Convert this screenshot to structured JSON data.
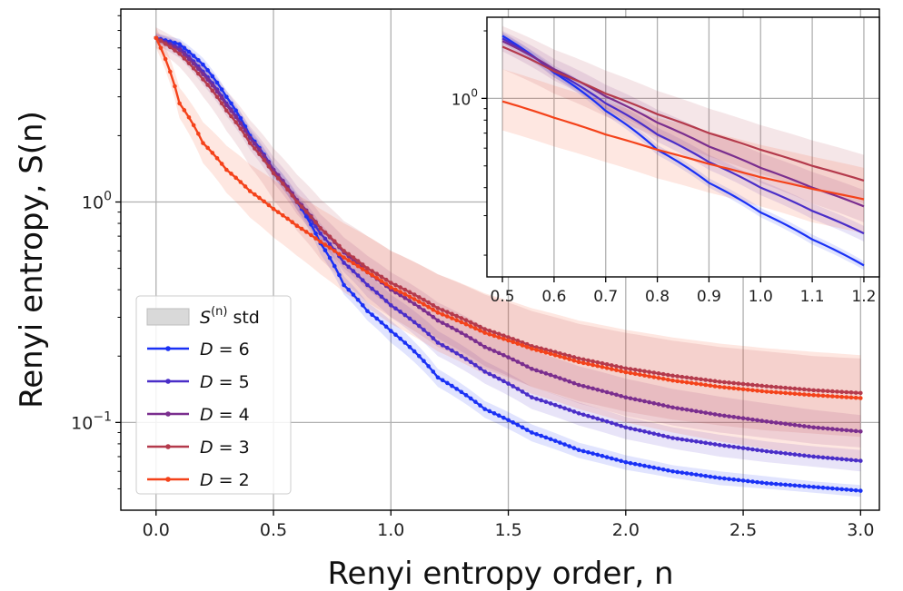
{
  "chart_data": [
    {
      "type": "line",
      "panel": "main",
      "xlabel": "Renyi entropy order, n",
      "ylabel": "Renyi entropy, S(n)",
      "yscale": "log",
      "xlim": [
        -0.15,
        3.08
      ],
      "ylim": [
        0.04,
        7.5
      ],
      "xticks": [
        "0.0",
        "0.5",
        "1.0",
        "1.5",
        "2.0",
        "2.5",
        "3.0"
      ],
      "xtick_values": [
        0,
        0.5,
        1.0,
        1.5,
        2.0,
        2.5,
        3.0
      ],
      "yticks": [
        "10",
        "10"
      ],
      "ytick_exponents": [
        "0",
        "−1"
      ],
      "ytick_values": [
        1,
        0.1
      ],
      "grid": true,
      "legend": {
        "position": "lower-left",
        "std_label": "std",
        "std_symbol": "S",
        "std_superscript": "(n)"
      },
      "series": [
        {
          "name": "D = 6",
          "label_var": "D",
          "label_val": "6",
          "color": "#1a31f5",
          "x": [
            0,
            0.1,
            0.2,
            0.3,
            0.4,
            0.5,
            0.6,
            0.7,
            0.8,
            0.9,
            1.0,
            1.2,
            1.4,
            1.6,
            1.8,
            2.0,
            2.2,
            2.4,
            2.6,
            2.8,
            3.0
          ],
          "values": [
            5.55,
            5.2,
            4.2,
            3.0,
            2.0,
            1.4,
            1.0,
            0.65,
            0.42,
            0.32,
            0.26,
            0.16,
            0.115,
            0.09,
            0.075,
            0.066,
            0.06,
            0.056,
            0.053,
            0.051,
            0.049
          ],
          "std_lower": [
            5.3,
            4.9,
            3.9,
            2.8,
            1.85,
            1.3,
            0.92,
            0.58,
            0.38,
            0.29,
            0.23,
            0.145,
            0.105,
            0.082,
            0.069,
            0.061,
            0.056,
            0.052,
            0.05,
            0.048,
            0.046
          ],
          "std_upper": [
            5.8,
            5.5,
            4.5,
            3.2,
            2.15,
            1.5,
            1.08,
            0.72,
            0.46,
            0.35,
            0.29,
            0.175,
            0.125,
            0.098,
            0.081,
            0.071,
            0.064,
            0.06,
            0.057,
            0.054,
            0.052
          ]
        },
        {
          "name": "D = 5",
          "label_var": "D",
          "label_val": "5",
          "color": "#4a2ec8",
          "x": [
            0,
            0.1,
            0.2,
            0.3,
            0.4,
            0.5,
            0.6,
            0.7,
            0.8,
            0.9,
            1.0,
            1.2,
            1.4,
            1.6,
            1.8,
            2.0,
            2.2,
            2.4,
            2.6,
            2.8,
            3.0
          ],
          "values": [
            5.55,
            5.0,
            3.9,
            2.8,
            1.95,
            1.4,
            1.0,
            0.72,
            0.53,
            0.42,
            0.34,
            0.23,
            0.17,
            0.13,
            0.11,
            0.095,
            0.085,
            0.079,
            0.074,
            0.07,
            0.067
          ],
          "std_lower": [
            5.3,
            4.7,
            3.6,
            2.6,
            1.8,
            1.3,
            0.92,
            0.65,
            0.48,
            0.37,
            0.3,
            0.2,
            0.15,
            0.115,
            0.097,
            0.084,
            0.076,
            0.07,
            0.066,
            0.063,
            0.06
          ],
          "std_upper": [
            5.8,
            5.3,
            4.2,
            3.0,
            2.1,
            1.5,
            1.1,
            0.8,
            0.59,
            0.47,
            0.38,
            0.26,
            0.19,
            0.145,
            0.123,
            0.106,
            0.095,
            0.088,
            0.082,
            0.078,
            0.075
          ]
        },
        {
          "name": "D = 4",
          "label_var": "D",
          "label_val": "4",
          "color": "#7a2e8e",
          "x": [
            0,
            0.1,
            0.2,
            0.3,
            0.4,
            0.5,
            0.6,
            0.7,
            0.8,
            0.9,
            1.0,
            1.2,
            1.4,
            1.6,
            1.8,
            2.0,
            2.2,
            2.4,
            2.6,
            2.8,
            3.0
          ],
          "values": [
            5.55,
            4.9,
            3.8,
            2.75,
            1.95,
            1.4,
            1.02,
            0.76,
            0.59,
            0.48,
            0.4,
            0.29,
            0.22,
            0.175,
            0.148,
            0.13,
            0.117,
            0.108,
            0.101,
            0.095,
            0.091
          ],
          "std_lower": [
            5.2,
            4.5,
            3.4,
            2.45,
            1.72,
            1.22,
            0.88,
            0.65,
            0.5,
            0.4,
            0.33,
            0.24,
            0.18,
            0.145,
            0.122,
            0.107,
            0.097,
            0.09,
            0.085,
            0.08,
            0.077
          ],
          "std_upper": [
            5.9,
            5.3,
            4.2,
            3.05,
            2.2,
            1.6,
            1.18,
            0.88,
            0.69,
            0.57,
            0.48,
            0.35,
            0.27,
            0.212,
            0.18,
            0.158,
            0.142,
            0.131,
            0.122,
            0.114,
            0.108
          ]
        },
        {
          "name": "D = 3",
          "label_var": "D",
          "label_val": "3",
          "color": "#b43a4c",
          "x": [
            0,
            0.1,
            0.2,
            0.3,
            0.4,
            0.5,
            0.6,
            0.7,
            0.8,
            0.9,
            1.0,
            1.2,
            1.4,
            1.6,
            1.8,
            2.0,
            2.2,
            2.4,
            2.6,
            2.8,
            3.0
          ],
          "values": [
            5.55,
            4.7,
            3.6,
            2.6,
            1.85,
            1.35,
            1.0,
            0.76,
            0.6,
            0.5,
            0.43,
            0.33,
            0.265,
            0.222,
            0.195,
            0.176,
            0.163,
            0.153,
            0.146,
            0.14,
            0.136
          ],
          "std_lower": [
            5.0,
            4.1,
            3.0,
            2.1,
            1.45,
            1.02,
            0.74,
            0.55,
            0.43,
            0.35,
            0.3,
            0.22,
            0.175,
            0.145,
            0.125,
            0.112,
            0.103,
            0.097,
            0.092,
            0.089,
            0.086
          ],
          "std_upper": [
            6.2,
            5.4,
            4.3,
            3.2,
            2.35,
            1.75,
            1.33,
            1.03,
            0.82,
            0.7,
            0.6,
            0.47,
            0.38,
            0.32,
            0.28,
            0.255,
            0.235,
            0.22,
            0.21,
            0.2,
            0.195
          ]
        },
        {
          "name": "D = 2",
          "label_var": "D",
          "label_val": "2",
          "color": "#f4421a",
          "x": [
            0,
            0.1,
            0.2,
            0.3,
            0.4,
            0.5,
            0.6,
            0.7,
            0.8,
            0.9,
            1.0,
            1.2,
            1.4,
            1.6,
            1.8,
            2.0,
            2.2,
            2.4,
            2.6,
            2.8,
            3.0
          ],
          "values": [
            5.55,
            2.8,
            1.85,
            1.4,
            1.12,
            0.93,
            0.78,
            0.66,
            0.56,
            0.48,
            0.41,
            0.315,
            0.255,
            0.216,
            0.188,
            0.169,
            0.155,
            0.145,
            0.138,
            0.133,
            0.129
          ],
          "std_lower": [
            5.0,
            2.4,
            1.5,
            1.1,
            0.85,
            0.69,
            0.57,
            0.47,
            0.39,
            0.33,
            0.28,
            0.21,
            0.165,
            0.135,
            0.115,
            0.1,
            0.09,
            0.082,
            0.076,
            0.071,
            0.067
          ],
          "std_upper": [
            6.2,
            3.3,
            2.3,
            1.8,
            1.48,
            1.26,
            1.08,
            0.93,
            0.8,
            0.7,
            0.6,
            0.47,
            0.385,
            0.33,
            0.29,
            0.263,
            0.243,
            0.228,
            0.217,
            0.209,
            0.202
          ]
        }
      ]
    },
    {
      "type": "line",
      "panel": "inset",
      "yscale": "log",
      "xlim": [
        0.47,
        1.23
      ],
      "ylim": [
        0.16,
        2.3
      ],
      "xticks": [
        "0.5",
        "0.6",
        "0.7",
        "0.8",
        "0.9",
        "1.0",
        "1.1",
        "1.2"
      ],
      "xtick_values": [
        0.5,
        0.6,
        0.7,
        0.8,
        0.9,
        1.0,
        1.1,
        1.2
      ],
      "yticks": [
        "10"
      ],
      "ytick_exponents": [
        "0"
      ],
      "ytick_values": [
        1
      ],
      "grid": true,
      "series": [
        {
          "name": "D = 6",
          "color": "#1a31f5",
          "x": [
            0.5,
            0.6,
            0.7,
            0.8,
            0.9,
            1.0,
            1.1,
            1.2
          ],
          "values": [
            1.9,
            1.3,
            0.88,
            0.59,
            0.42,
            0.31,
            0.235,
            0.18
          ],
          "std_lower": [
            1.82,
            1.24,
            0.84,
            0.56,
            0.4,
            0.295,
            0.223,
            0.172
          ],
          "std_upper": [
            1.98,
            1.36,
            0.92,
            0.62,
            0.44,
            0.325,
            0.247,
            0.188
          ]
        },
        {
          "name": "D = 5",
          "color": "#4a2ec8",
          "x": [
            0.5,
            0.6,
            0.7,
            0.8,
            0.9,
            1.0,
            1.1,
            1.2
          ],
          "values": [
            1.85,
            1.32,
            0.95,
            0.69,
            0.52,
            0.4,
            0.315,
            0.25
          ],
          "std_lower": [
            1.75,
            1.24,
            0.89,
            0.64,
            0.48,
            0.37,
            0.29,
            0.23
          ],
          "std_upper": [
            1.95,
            1.4,
            1.01,
            0.74,
            0.56,
            0.43,
            0.34,
            0.27
          ]
        },
        {
          "name": "D = 4",
          "color": "#7a2e8e",
          "x": [
            0.5,
            0.6,
            0.7,
            0.8,
            0.9,
            1.0,
            1.1,
            1.2
          ],
          "values": [
            1.8,
            1.35,
            1.02,
            0.78,
            0.61,
            0.49,
            0.4,
            0.33
          ],
          "std_lower": [
            1.62,
            1.2,
            0.9,
            0.68,
            0.53,
            0.42,
            0.34,
            0.28
          ],
          "std_upper": [
            2.0,
            1.5,
            1.15,
            0.89,
            0.7,
            0.57,
            0.47,
            0.39
          ]
        },
        {
          "name": "D = 3",
          "color": "#b43a4c",
          "x": [
            0.5,
            0.6,
            0.7,
            0.8,
            0.9,
            1.0,
            1.1,
            1.2
          ],
          "values": [
            1.7,
            1.32,
            1.05,
            0.85,
            0.7,
            0.59,
            0.5,
            0.43
          ],
          "std_lower": [
            1.35,
            1.05,
            0.83,
            0.67,
            0.55,
            0.46,
            0.39,
            0.34
          ],
          "std_upper": [
            2.1,
            1.65,
            1.33,
            1.08,
            0.9,
            0.76,
            0.65,
            0.56
          ]
        },
        {
          "name": "D = 2",
          "color": "#f4421a",
          "x": [
            0.5,
            0.6,
            0.7,
            0.8,
            0.9,
            1.0,
            1.1,
            1.2
          ],
          "values": [
            0.97,
            0.82,
            0.69,
            0.59,
            0.51,
            0.445,
            0.395,
            0.355
          ],
          "std_lower": [
            0.72,
            0.61,
            0.52,
            0.44,
            0.38,
            0.33,
            0.28,
            0.25
          ],
          "std_upper": [
            1.35,
            1.14,
            0.96,
            0.82,
            0.71,
            0.62,
            0.55,
            0.49
          ]
        }
      ]
    }
  ]
}
